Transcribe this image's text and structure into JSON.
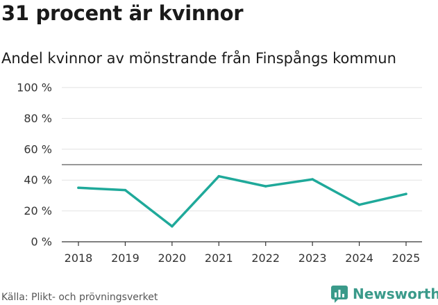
{
  "chart_data": {
    "type": "line",
    "title": "31 procent är kvinnor",
    "subtitle": "Andel kvinnor av mönstrande från Finspångs kommun",
    "x": [
      "2018",
      "2019",
      "2020",
      "2021",
      "2022",
      "2023",
      "2024",
      "2025"
    ],
    "series": [
      {
        "name": "Andel kvinnor",
        "values": [
          35,
          33.5,
          10,
          42.5,
          36,
          40.5,
          24,
          31
        ]
      }
    ],
    "reference_line": 50,
    "ylim": [
      0,
      100
    ],
    "yticks": [
      0,
      20,
      40,
      60,
      80,
      100
    ],
    "ytick_labels": [
      "0 %",
      "20 %",
      "40 %",
      "60 %",
      "80 %",
      "100 %"
    ],
    "grid": true,
    "xlabel": "",
    "ylabel": ""
  },
  "source": "Källa: Plikt- och prövningsverket",
  "brand": {
    "name": "Newsworthy",
    "icon": "newsworthy-logo-icon"
  },
  "colors": {
    "line": "#1fa99a",
    "grid": "#e2e2e2",
    "reference": "#777777",
    "axis": "#333333",
    "brand": "#3a9a8a"
  }
}
